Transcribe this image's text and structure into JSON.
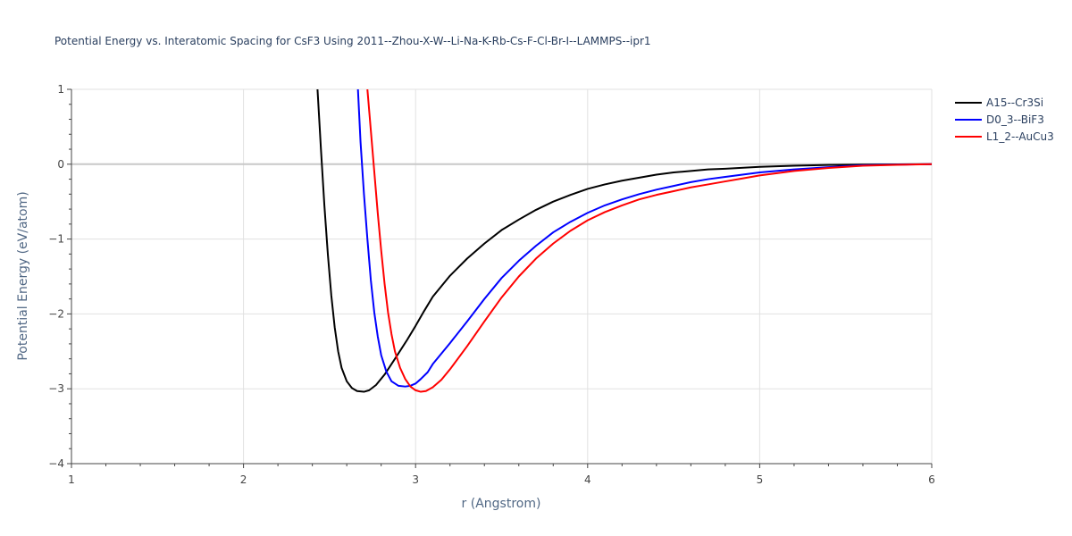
{
  "chart_data": {
    "type": "line",
    "title": "Potential Energy vs. Interatomic Spacing for CsF3 Using 2011--Zhou-X-W--Li-Na-K-Rb-Cs-F-Cl-Br-I--LAMMPS--ipr1",
    "xlabel": "r (Angstrom)",
    "ylabel": "Potential Energy (eV/atom)",
    "xlim": [
      1,
      6
    ],
    "ylim": [
      -4,
      1
    ],
    "xticks": [
      1,
      2,
      3,
      4,
      5,
      6
    ],
    "yticks": [
      -4,
      -3,
      -2,
      -1,
      0,
      1
    ],
    "ytick_labels": [
      "−4",
      "−3",
      "−2",
      "−1",
      "0",
      "1"
    ],
    "grid": true,
    "legend_position": "top-right",
    "series": [
      {
        "name": "A15--Cr3Si",
        "color": "#000000",
        "x": [
          2.43,
          2.45,
          2.47,
          2.49,
          2.51,
          2.53,
          2.55,
          2.57,
          2.6,
          2.63,
          2.66,
          2.7,
          2.73,
          2.77,
          2.82,
          2.88,
          2.95,
          3.0,
          3.05,
          3.1,
          3.2,
          3.3,
          3.4,
          3.5,
          3.6,
          3.7,
          3.8,
          3.9,
          4.0,
          4.1,
          4.2,
          4.3,
          4.4,
          4.5,
          4.6,
          4.7,
          4.8,
          5.0,
          5.2,
          5.4,
          5.6,
          5.8,
          6.0
        ],
        "y": [
          1.0,
          0.2,
          -0.55,
          -1.2,
          -1.75,
          -2.18,
          -2.5,
          -2.72,
          -2.9,
          -2.99,
          -3.03,
          -3.04,
          -3.02,
          -2.95,
          -2.81,
          -2.6,
          -2.35,
          -2.16,
          -1.96,
          -1.77,
          -1.49,
          -1.26,
          -1.06,
          -0.88,
          -0.74,
          -0.61,
          -0.5,
          -0.41,
          -0.33,
          -0.27,
          -0.22,
          -0.18,
          -0.14,
          -0.11,
          -0.09,
          -0.07,
          -0.06,
          -0.035,
          -0.02,
          -0.01,
          -0.005,
          -0.002,
          0.0
        ]
      },
      {
        "name": "D0_3--BiF3",
        "color": "#0000ff",
        "x": [
          2.665,
          2.68,
          2.7,
          2.72,
          2.74,
          2.76,
          2.78,
          2.8,
          2.83,
          2.86,
          2.9,
          2.94,
          2.97,
          3.0,
          3.03,
          3.07,
          3.1,
          3.2,
          3.3,
          3.4,
          3.5,
          3.6,
          3.7,
          3.8,
          3.9,
          4.0,
          4.1,
          4.2,
          4.3,
          4.4,
          4.5,
          4.6,
          4.7,
          4.8,
          5.0,
          5.2,
          5.4,
          5.6,
          5.8,
          6.0
        ],
        "y": [
          1.0,
          0.3,
          -0.4,
          -1.0,
          -1.55,
          -1.98,
          -2.3,
          -2.55,
          -2.77,
          -2.9,
          -2.96,
          -2.97,
          -2.96,
          -2.93,
          -2.87,
          -2.78,
          -2.67,
          -2.39,
          -2.1,
          -1.8,
          -1.52,
          -1.29,
          -1.09,
          -0.91,
          -0.77,
          -0.65,
          -0.55,
          -0.47,
          -0.4,
          -0.34,
          -0.29,
          -0.24,
          -0.2,
          -0.17,
          -0.11,
          -0.07,
          -0.04,
          -0.015,
          -0.005,
          0.0
        ]
      },
      {
        "name": "L1_2--AuCu3",
        "color": "#ff0000",
        "x": [
          2.72,
          2.74,
          2.76,
          2.78,
          2.8,
          2.82,
          2.84,
          2.86,
          2.88,
          2.91,
          2.94,
          2.97,
          3.0,
          3.03,
          3.06,
          3.1,
          3.15,
          3.2,
          3.3,
          3.4,
          3.5,
          3.6,
          3.7,
          3.8,
          3.9,
          4.0,
          4.1,
          4.2,
          4.3,
          4.4,
          4.5,
          4.6,
          4.7,
          4.8,
          4.9,
          5.0,
          5.2,
          5.4,
          5.6,
          5.8,
          6.0
        ],
        "y": [
          1.0,
          0.45,
          -0.1,
          -0.65,
          -1.15,
          -1.6,
          -1.98,
          -2.27,
          -2.5,
          -2.72,
          -2.87,
          -2.97,
          -3.02,
          -3.04,
          -3.03,
          -2.98,
          -2.88,
          -2.74,
          -2.43,
          -2.1,
          -1.78,
          -1.5,
          -1.26,
          -1.06,
          -0.89,
          -0.75,
          -0.64,
          -0.55,
          -0.47,
          -0.41,
          -0.36,
          -0.31,
          -0.27,
          -0.23,
          -0.19,
          -0.15,
          -0.09,
          -0.05,
          -0.02,
          -0.008,
          0.0
        ]
      }
    ]
  }
}
